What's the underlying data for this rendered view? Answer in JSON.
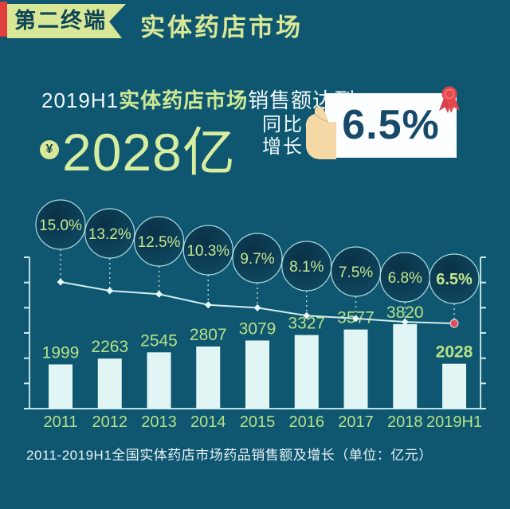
{
  "header": {
    "badge_label": "第二终端",
    "title": "实体药店市场"
  },
  "summary": {
    "line1_prefix": "2019H1",
    "line1_highlight": "实体药店市场",
    "line1_suffix": "销售额达到",
    "currency_symbol": "¥",
    "amount": "2028亿",
    "growth_label_line1": "同比",
    "growth_label_line2": "增长",
    "growth_value": "6.5%"
  },
  "icons": {
    "coin": "yuan-coin-icon",
    "hand": "hand-holding-card-icon",
    "medal": "red-rosette-medal-icon"
  },
  "caption": "2011-2019H1全国实体药店市场药品销售额及增长（单位：亿元）",
  "chart_data": {
    "type": "bar",
    "combo": "bar+line",
    "categories": [
      "2011",
      "2012",
      "2013",
      "2014",
      "2015",
      "2016",
      "2017",
      "2018",
      "2019H1"
    ],
    "series": [
      {
        "name": "实体药店市场药品销售额(亿元)",
        "type": "bar",
        "values": [
          1999,
          2263,
          2545,
          2807,
          3079,
          3327,
          3577,
          3820,
          2028
        ]
      },
      {
        "name": "同比增长",
        "type": "line",
        "values_pct": [
          15.0,
          13.2,
          12.5,
          10.3,
          9.7,
          8.1,
          7.5,
          6.8,
          6.5
        ],
        "labels": [
          "15.0%",
          "13.2%",
          "12.5%",
          "10.3%",
          "9.7%",
          "8.1%",
          "7.5%",
          "6.8%",
          "6.5%"
        ]
      }
    ],
    "title": "2011-2019H1全国实体药店市场药品销售额及增长",
    "unit": "亿元",
    "xlabel": "",
    "ylabel": "",
    "legend_position": "none",
    "grid": false,
    "emphasis_index": 8
  },
  "colors": {
    "background": "#0f5670",
    "accent_green": "#d9e897",
    "accent_red": "#e23f3f",
    "bar_fill": "#e1f6f4",
    "label_green": "#b5e189",
    "axis_line": "#cfeeed",
    "trend_line": "#cfeeed",
    "bubble_rim": "#aadbde",
    "bubble_text": "#c3e88f",
    "highlight_dot": "#e04f5e",
    "card_text": "#16496a",
    "white_text": "#f2fafa",
    "hand_skin": "#f4d8a6"
  }
}
